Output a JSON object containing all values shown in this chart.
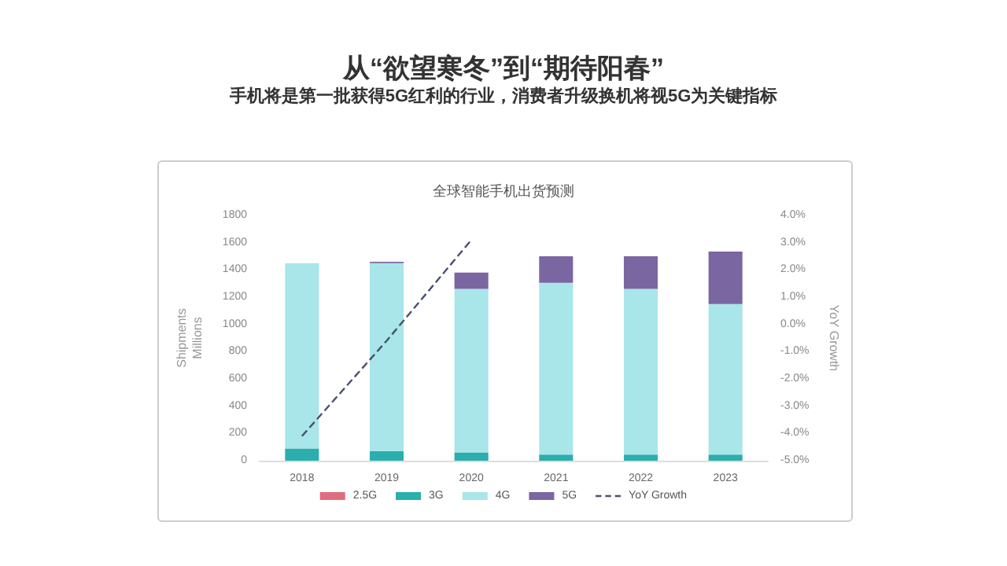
{
  "chart_data": {
    "type": "bar",
    "title": "从“欲望寒冬”到“期待阳春”",
    "subtitle": "手机将是第一批获得5G红利的行业，消费者升级换机将视5G为关键指标",
    "annotations": [
      "全球智能手机出货预测"
    ],
    "ylabel": "Shipments\nMillions",
    "y2label": "YoY Growth",
    "categories": [
      "2018",
      "2019",
      "2020",
      "2021",
      "2022",
      "2023"
    ],
    "stacked": true,
    "series": [
      {
        "name": "2.5G",
        "color": "#e06c80",
        "values": [
          0,
          0,
          0,
          0,
          0,
          0
        ]
      },
      {
        "name": "3G",
        "color": "#2aaeae",
        "values": [
          90,
          70,
          60,
          45,
          45,
          45
        ]
      },
      {
        "name": "4G",
        "color": "#a8e6ea",
        "values": [
          1360,
          1380,
          1200,
          1260,
          1215,
          1105
        ]
      },
      {
        "name": "5G",
        "color": "#7a66a0",
        "values": [
          0,
          10,
          120,
          195,
          240,
          385
        ]
      },
      {
        "name": "YoY Growth",
        "type": "line",
        "axis": "y2",
        "color": "#4a5070",
        "line_style": "dashed",
        "marker": "none",
        "values": [
          -4.1,
          -0.6,
          3.1,
          null,
          null,
          null
        ]
      }
    ],
    "ylim": [
      0,
      1800
    ],
    "yticks": [
      0,
      200,
      400,
      600,
      800,
      1000,
      1200,
      1400,
      1600,
      1800
    ],
    "y2lim": [
      -5,
      4
    ],
    "y2ticks": [
      {
        "value": -5,
        "label": "-5.0%"
      },
      {
        "value": -4,
        "label": "-4.0%"
      },
      {
        "value": -3,
        "label": "-3.0%"
      },
      {
        "value": -2,
        "label": "-2.0%"
      },
      {
        "value": -1,
        "label": "-1.0%"
      },
      {
        "value": 0,
        "label": "0.0%"
      },
      {
        "value": 1,
        "label": "1.0%"
      },
      {
        "value": 2,
        "label": "2.0%"
      },
      {
        "value": 3,
        "label": "3.0%"
      },
      {
        "value": 4,
        "label": "4.0%"
      }
    ],
    "grid": false,
    "legend": "bottom"
  }
}
